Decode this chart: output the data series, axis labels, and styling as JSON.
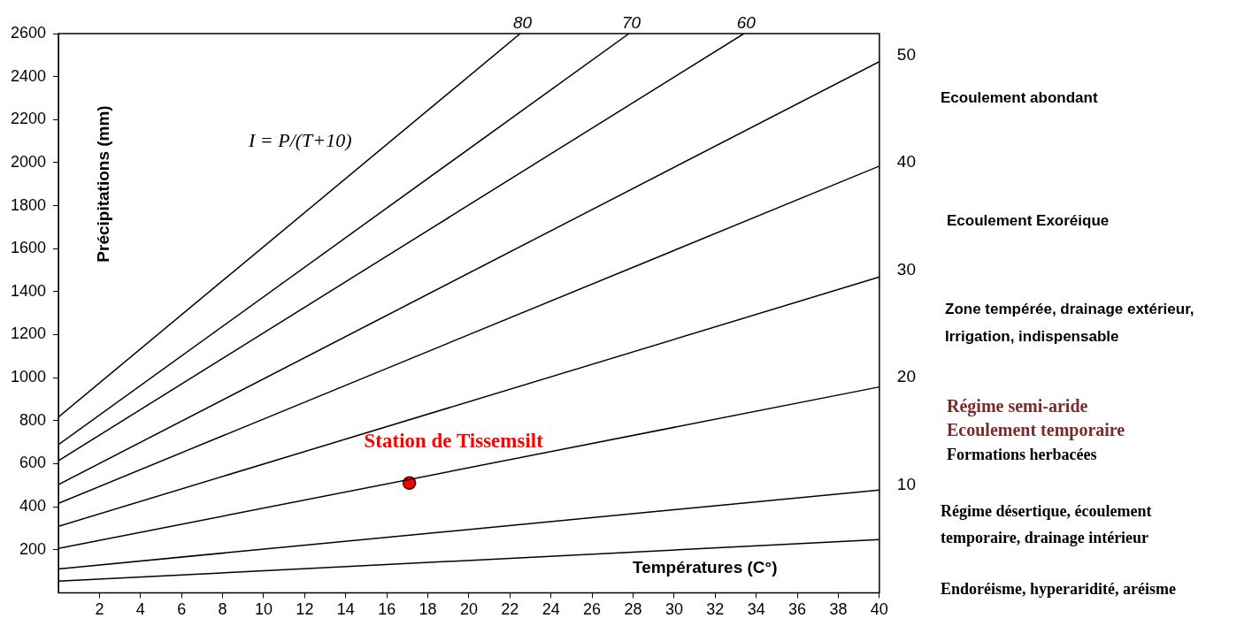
{
  "chart_data": {
    "type": "line",
    "xlabel": "Températures (C°)",
    "ylabel": "Précipitations (mm)",
    "xlim": [
      0,
      40
    ],
    "xticks": [
      2,
      4,
      6,
      8,
      10,
      12,
      14,
      16,
      18,
      20,
      22,
      24,
      26,
      28,
      30,
      32,
      34,
      36,
      38,
      40
    ],
    "ylim": [
      0,
      2600
    ],
    "yticks": [
      200,
      400,
      600,
      800,
      1000,
      1200,
      1400,
      1600,
      1800,
      2000,
      2200,
      2400,
      2600
    ],
    "y2lim": [
      0,
      52
    ],
    "y2ticks": [
      10,
      20,
      30,
      40,
      50
    ],
    "grid": false,
    "legend": false,
    "series": [
      {
        "color": "#000000",
        "x": [
          0,
          40
        ],
        "values": [
          54,
          247
        ]
      },
      {
        "color": "#000000",
        "x": [
          0,
          40
        ],
        "values": [
          111,
          478
        ]
      },
      {
        "color": "#000000",
        "x": [
          0,
          40
        ],
        "values": [
          206,
          957
        ]
      },
      {
        "color": "#000000",
        "x": [
          0,
          40
        ],
        "values": [
          309,
          1468
        ]
      },
      {
        "color": "#000000",
        "x": [
          0,
          40
        ],
        "values": [
          416,
          1984
        ]
      },
      {
        "color": "#000000",
        "x": [
          0,
          40
        ],
        "values": [
          503,
          2470
        ]
      },
      {
        "name": "60",
        "color": "#000000",
        "x": [
          0,
          33.4
        ],
        "values": [
          614,
          2600
        ]
      },
      {
        "name": "70",
        "color": "#000000",
        "x": [
          0,
          27.8
        ],
        "values": [
          689,
          2600
        ]
      },
      {
        "name": "80",
        "color": "#000000",
        "x": [
          0,
          22.5
        ],
        "values": [
          817,
          2600
        ]
      },
      {
        "name": "Station de Tissemsilt",
        "type": "scatter",
        "marker": "circle",
        "color": "#ff0000",
        "x": [
          17.1
        ],
        "values": [
          510
        ]
      }
    ],
    "annotations": [
      "I = P/(T+10)",
      "Ecoulement abondant",
      "Ecoulement Exoréique",
      "Zone tempérée, drainage extérieur,\nIrrigation, indispensable",
      "Régime semi-aride\nEcoulement temporaire",
      "Formations herbacées",
      "Régime désertique, écoulement\ntemporaire, drainage intérieur",
      "Endoréisme, hyperaridité, aréisme"
    ]
  }
}
